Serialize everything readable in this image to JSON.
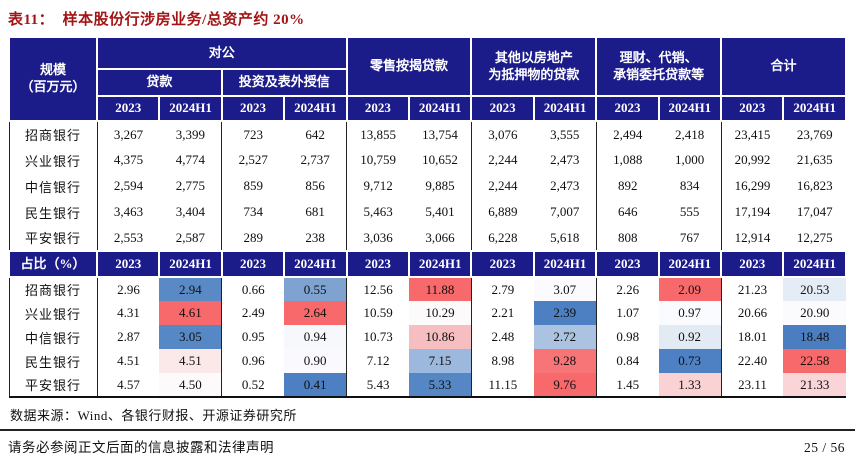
{
  "title": "表11：  样本股份行涉房业务/总资产约 20%",
  "palette": {
    "header_navy": "#1B1B8A",
    "title_red": "#A31515",
    "heat_red": "#F8696B",
    "heat_blue": "#5A8AC6"
  },
  "table": {
    "corner_label": "规模\n（百万元）",
    "group_corporate": "对公",
    "sub_loans": "贷款",
    "sub_invest": "投资及表外授信",
    "group_retail": "零售按揭贷款",
    "group_other": "其他以房地产\n为抵押物的贷款",
    "group_wealth": "理财、代销、\n承销委托贷款等",
    "group_total": "合计",
    "years": [
      "2023",
      "2024H1"
    ],
    "pct_label": "占比（%）",
    "scale_rows": [
      {
        "bank": "招商银行",
        "values": [
          "3,267",
          "3,399",
          "723",
          "642",
          "13,855",
          "13,754",
          "3,076",
          "3,555",
          "2,494",
          "2,418",
          "23,415",
          "23,769"
        ]
      },
      {
        "bank": "兴业银行",
        "values": [
          "4,375",
          "4,774",
          "2,527",
          "2,737",
          "10,759",
          "10,652",
          "2,244",
          "2,473",
          "1,088",
          "1,000",
          "20,992",
          "21,635"
        ]
      },
      {
        "bank": "中信银行",
        "values": [
          "2,594",
          "2,775",
          "859",
          "856",
          "9,712",
          "9,885",
          "2,244",
          "2,473",
          "892",
          "834",
          "16,299",
          "16,823"
        ]
      },
      {
        "bank": "民生银行",
        "values": [
          "3,463",
          "3,404",
          "734",
          "681",
          "5,463",
          "5,401",
          "6,889",
          "7,007",
          "646",
          "555",
          "17,194",
          "17,047"
        ]
      },
      {
        "bank": "平安银行",
        "values": [
          "2,553",
          "2,587",
          "289",
          "238",
          "3,036",
          "3,066",
          "6,228",
          "5,618",
          "808",
          "767",
          "12,914",
          "12,275"
        ]
      }
    ],
    "pct_rows": [
      {
        "bank": "招商银行",
        "values": [
          "2.96",
          "2.94",
          "0.66",
          "0.55",
          "12.56",
          "11.88",
          "2.79",
          "3.07",
          "2.26",
          "2.09",
          "21.23",
          "20.53"
        ],
        "colors": [
          "",
          "#5A8AC6",
          "",
          "#7FA3D1",
          "",
          "#F8696B",
          "",
          "#FBFAFE",
          "",
          "#F8696B",
          "",
          "#E4ECF5"
        ]
      },
      {
        "bank": "兴业银行",
        "values": [
          "4.31",
          "4.61",
          "2.49",
          "2.64",
          "10.59",
          "10.29",
          "2.21",
          "2.39",
          "1.07",
          "0.97",
          "20.66",
          "20.90"
        ],
        "colors": [
          "",
          "#F8696B",
          "",
          "#F8696B",
          "",
          "#FDFAFB",
          "",
          "#4C80C2",
          "",
          "#FAFBFE",
          "",
          "#FBFBFE"
        ]
      },
      {
        "bank": "中信银行",
        "values": [
          "2.87",
          "3.05",
          "0.95",
          "0.94",
          "10.73",
          "10.86",
          "2.48",
          "2.72",
          "0.98",
          "0.92",
          "18.01",
          "18.48"
        ],
        "colors": [
          "",
          "#5688C5",
          "",
          "#F7F8FC",
          "",
          "#F6BEC0",
          "",
          "#ABC3E0",
          "",
          "#E2EAF4",
          "",
          "#4A7EC1"
        ]
      },
      {
        "bank": "民生银行",
        "values": [
          "4.51",
          "4.51",
          "0.96",
          "0.90",
          "7.12",
          "7.15",
          "8.98",
          "9.28",
          "0.84",
          "0.73",
          "22.40",
          "22.58"
        ],
        "colors": [
          "",
          "#FBE8E9",
          "",
          "#FAFAFE",
          "",
          "#9CB9DD",
          "",
          "#F87577",
          "",
          "#4D81C3",
          "",
          "#F8696B"
        ]
      },
      {
        "bank": "平安银行",
        "values": [
          "4.57",
          "4.50",
          "0.52",
          "0.41",
          "5.43",
          "5.33",
          "11.15",
          "9.76",
          "1.45",
          "1.33",
          "23.11",
          "21.33"
        ],
        "colors": [
          "",
          "#FDFAFC",
          "",
          "#4C80C2",
          "",
          "#5587C5",
          "",
          "#F8696B",
          "",
          "#FAD2D4",
          "",
          "#F9D5D7"
        ]
      }
    ]
  },
  "footer": {
    "source": "数据来源：Wind、各银行财报、开源证券研究所",
    "disclaimer": "请务必参阅正文后面的信息披露和法律声明",
    "page": "25 / 56"
  }
}
